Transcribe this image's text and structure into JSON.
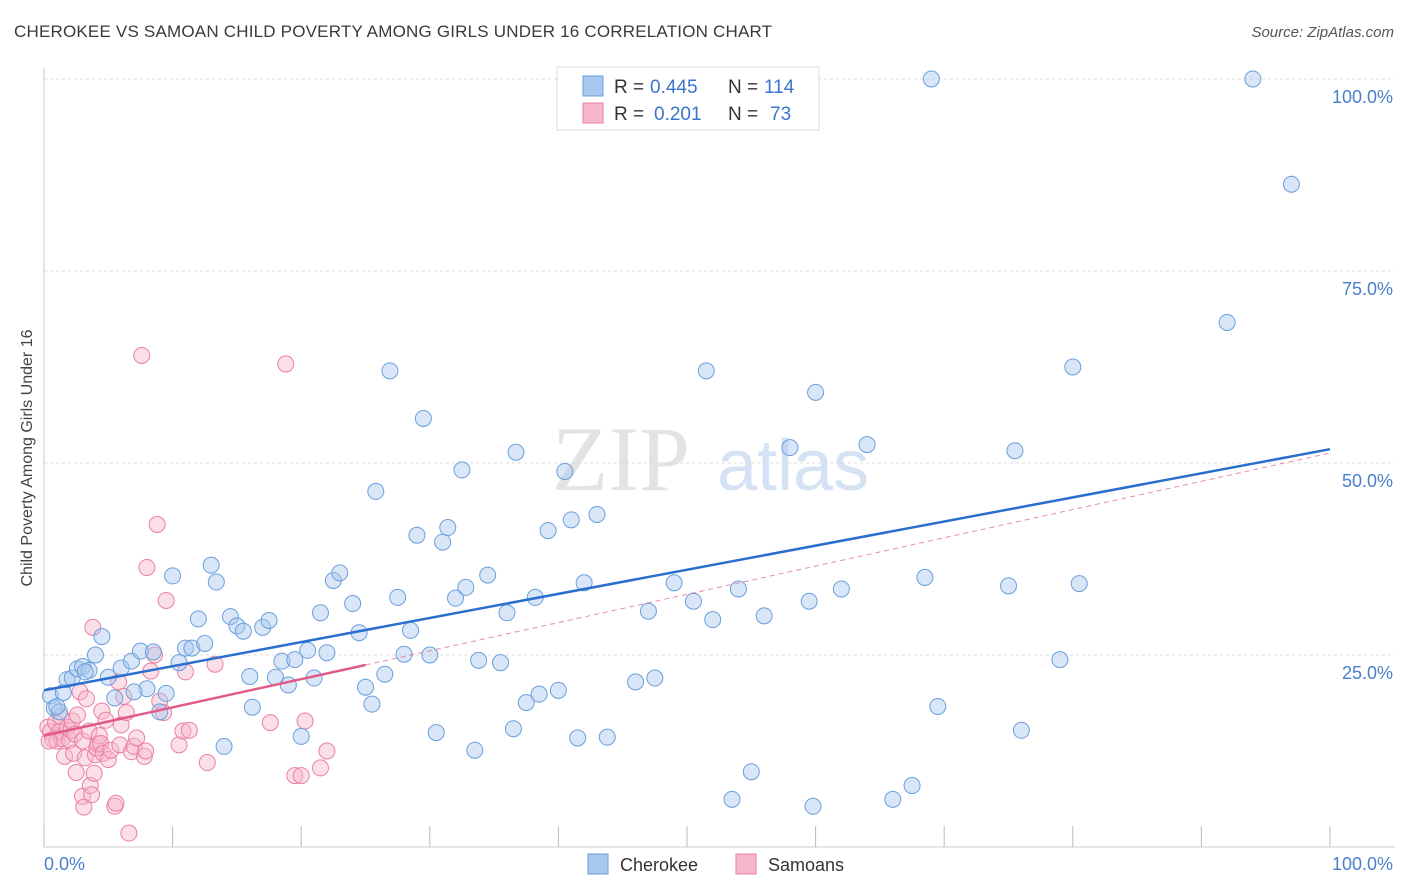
{
  "title": "CHEROKEE VS SAMOAN CHILD POVERTY AMONG GIRLS UNDER 16 CORRELATION CHART",
  "source": "Source: ZipAtlas.com",
  "watermark": {
    "zip": "ZIP",
    "atlas": "atlas"
  },
  "legend": {
    "r_label": "R =",
    "n_label": "N =",
    "cherokee": {
      "r": "0.445",
      "n": "114"
    },
    "samoans": {
      "r": "0.201",
      "n": "73"
    }
  },
  "colors": {
    "cherokee_fill": "#a9c8ef",
    "cherokee_stroke": "#6a9fdc",
    "cherokee_line": "#2a6fcf",
    "samoans_fill": "#f7b8cc",
    "samoans_stroke": "#ea7fa2",
    "samoans_line": "#e05a8a",
    "tick_color": "#4a7fcf",
    "grid": "#dddddd"
  },
  "chart_data": {
    "type": "scatter",
    "title": "CHEROKEE VS SAMOAN CHILD POVERTY AMONG GIRLS UNDER 16 CORRELATION CHART",
    "xlabel": "",
    "ylabel": "Child Poverty Among Girls Under 16",
    "xlim": [
      0,
      100
    ],
    "ylim": [
      0,
      100
    ],
    "x_tick_labels": [
      "0.0%",
      "100.0%"
    ],
    "y_tick_labels": [
      {
        "value": 25,
        "label": "25.0%"
      },
      {
        "value": 50,
        "label": "50.0%"
      },
      {
        "value": 75,
        "label": "75.0%"
      },
      {
        "value": 100,
        "label": "100.0%"
      }
    ],
    "grid": true,
    "legend_position": "top-center",
    "series": [
      {
        "name": "Cherokee",
        "r": 0.445,
        "n": 114,
        "trend": {
          "x": [
            0,
            100
          ],
          "y": [
            20.4,
            51.8
          ],
          "style": "solid"
        },
        "points": [
          [
            0.5,
            19.7
          ],
          [
            0.8,
            18.1
          ],
          [
            1.2,
            17.6
          ],
          [
            1.5,
            20.1
          ],
          [
            1.8,
            21.8
          ],
          [
            2.2,
            22.0
          ],
          [
            2.6,
            23.2
          ],
          [
            3.0,
            23.5
          ],
          [
            3.5,
            23.0
          ],
          [
            4.0,
            25.0
          ],
          [
            4.5,
            27.4
          ],
          [
            5.0,
            22.1
          ],
          [
            5.5,
            19.4
          ],
          [
            6.0,
            23.3
          ],
          [
            6.8,
            24.2
          ],
          [
            7.5,
            25.5
          ],
          [
            8.0,
            20.6
          ],
          [
            8.5,
            25.4
          ],
          [
            9.0,
            17.6
          ],
          [
            9.5,
            20.0
          ],
          [
            10.0,
            35.3
          ],
          [
            10.5,
            24.0
          ],
          [
            11.0,
            25.9
          ],
          [
            11.5,
            25.9
          ],
          [
            12.0,
            29.7
          ],
          [
            12.5,
            26.5
          ],
          [
            13.0,
            36.7
          ],
          [
            13.4,
            34.5
          ],
          [
            14.0,
            13.1
          ],
          [
            14.5,
            30.0
          ],
          [
            15.0,
            28.8
          ],
          [
            15.5,
            28.1
          ],
          [
            16.0,
            22.2
          ],
          [
            16.2,
            18.2
          ],
          [
            17.0,
            28.6
          ],
          [
            17.5,
            29.5
          ],
          [
            18.0,
            22.1
          ],
          [
            18.5,
            24.2
          ],
          [
            19.0,
            21.1
          ],
          [
            19.5,
            24.4
          ],
          [
            20.0,
            14.4
          ],
          [
            20.5,
            25.6
          ],
          [
            21.0,
            22.0
          ],
          [
            21.5,
            30.5
          ],
          [
            22.0,
            25.3
          ],
          [
            22.5,
            34.7
          ],
          [
            23.0,
            35.7
          ],
          [
            24.0,
            31.7
          ],
          [
            24.5,
            27.9
          ],
          [
            25.0,
            20.8
          ],
          [
            25.5,
            18.6
          ],
          [
            25.8,
            46.3
          ],
          [
            26.5,
            22.5
          ],
          [
            26.9,
            62.0
          ],
          [
            27.5,
            32.5
          ],
          [
            28.0,
            25.1
          ],
          [
            28.5,
            28.2
          ],
          [
            29.0,
            40.6
          ],
          [
            29.5,
            55.8
          ],
          [
            30.0,
            25.0
          ],
          [
            30.5,
            14.9
          ],
          [
            31.0,
            39.7
          ],
          [
            31.4,
            41.6
          ],
          [
            32.0,
            32.4
          ],
          [
            32.5,
            49.1
          ],
          [
            32.8,
            33.8
          ],
          [
            33.5,
            12.6
          ],
          [
            33.8,
            24.3
          ],
          [
            34.5,
            35.4
          ],
          [
            35.5,
            24.0
          ],
          [
            36.0,
            30.5
          ],
          [
            36.5,
            15.4
          ],
          [
            36.7,
            51.4
          ],
          [
            37.5,
            18.8
          ],
          [
            38.2,
            32.5
          ],
          [
            38.5,
            19.9
          ],
          [
            39.2,
            41.2
          ],
          [
            40.0,
            20.4
          ],
          [
            40.5,
            48.9
          ],
          [
            41.0,
            42.6
          ],
          [
            41.5,
            14.2
          ],
          [
            42.0,
            34.4
          ],
          [
            43.0,
            43.3
          ],
          [
            43.8,
            14.3
          ],
          [
            46.0,
            21.5
          ],
          [
            47.0,
            30.7
          ],
          [
            47.5,
            22.0
          ],
          [
            49.0,
            34.4
          ],
          [
            50.5,
            32.0
          ],
          [
            51.5,
            62.0
          ],
          [
            52.0,
            29.6
          ],
          [
            53.5,
            6.2
          ],
          [
            54.0,
            33.6
          ],
          [
            55.0,
            9.8
          ],
          [
            56.0,
            30.1
          ],
          [
            58.0,
            52.0
          ],
          [
            59.5,
            32.0
          ],
          [
            59.8,
            5.3
          ],
          [
            60.0,
            59.2
          ],
          [
            62.0,
            33.6
          ],
          [
            64.0,
            52.4
          ],
          [
            66.0,
            6.2
          ],
          [
            67.5,
            8.0
          ],
          [
            68.5,
            35.1
          ],
          [
            69.0,
            100.0
          ],
          [
            69.5,
            18.3
          ],
          [
            75.0,
            34.0
          ],
          [
            75.5,
            51.6
          ],
          [
            76.0,
            15.2
          ],
          [
            79.0,
            24.4
          ],
          [
            80.0,
            62.5
          ],
          [
            80.5,
            34.3
          ],
          [
            92.0,
            68.3
          ],
          [
            94.0,
            100.0
          ],
          [
            97.0,
            86.3
          ],
          [
            1.0,
            18.3
          ],
          [
            7.0,
            20.2
          ],
          [
            3.2,
            22.8
          ]
        ]
      },
      {
        "name": "Samoans",
        "r": 0.201,
        "n": 73,
        "trend": {
          "x": [
            0,
            25
          ],
          "y": [
            14.5,
            23.7
          ],
          "style": "solid"
        },
        "trend_extended": {
          "x": [
            25,
            100
          ],
          "y": [
            23.7,
            51.3
          ],
          "style": "dashed"
        },
        "points": [
          [
            0.3,
            15.6
          ],
          [
            0.5,
            15.0
          ],
          [
            0.7,
            14.0
          ],
          [
            0.9,
            16.2
          ],
          [
            1.0,
            13.8
          ],
          [
            1.2,
            15.0
          ],
          [
            1.3,
            17.0
          ],
          [
            1.4,
            14.1
          ],
          [
            1.6,
            11.8
          ],
          [
            1.8,
            15.6
          ],
          [
            2.0,
            13.9
          ],
          [
            2.1,
            15.2
          ],
          [
            2.2,
            16.4
          ],
          [
            2.3,
            12.2
          ],
          [
            2.4,
            14.7
          ],
          [
            2.5,
            9.7
          ],
          [
            2.6,
            17.2
          ],
          [
            2.8,
            20.2
          ],
          [
            3.0,
            13.8
          ],
          [
            3.0,
            6.6
          ],
          [
            3.1,
            5.2
          ],
          [
            3.2,
            11.6
          ],
          [
            3.3,
            19.3
          ],
          [
            3.5,
            15.1
          ],
          [
            3.6,
            8.0
          ],
          [
            3.7,
            6.8
          ],
          [
            3.8,
            28.6
          ],
          [
            3.9,
            9.6
          ],
          [
            4.0,
            12.0
          ],
          [
            4.1,
            12.9
          ],
          [
            4.2,
            13.4
          ],
          [
            4.3,
            14.5
          ],
          [
            4.4,
            13.5
          ],
          [
            4.5,
            17.7
          ],
          [
            4.6,
            12.2
          ],
          [
            4.8,
            16.5
          ],
          [
            5.0,
            11.4
          ],
          [
            5.2,
            12.6
          ],
          [
            5.5,
            5.3
          ],
          [
            5.6,
            5.7
          ],
          [
            5.8,
            21.5
          ],
          [
            5.9,
            13.3
          ],
          [
            6.0,
            15.9
          ],
          [
            6.2,
            19.6
          ],
          [
            6.4,
            17.5
          ],
          [
            6.6,
            1.8
          ],
          [
            6.8,
            12.4
          ],
          [
            7.0,
            13.1
          ],
          [
            7.2,
            14.2
          ],
          [
            7.6,
            64.0
          ],
          [
            7.8,
            11.8
          ],
          [
            7.9,
            12.5
          ],
          [
            8.0,
            36.4
          ],
          [
            8.3,
            22.9
          ],
          [
            8.6,
            25.0
          ],
          [
            8.8,
            42.0
          ],
          [
            9.0,
            19.0
          ],
          [
            9.3,
            17.5
          ],
          [
            9.5,
            32.1
          ],
          [
            10.5,
            13.3
          ],
          [
            10.8,
            15.1
          ],
          [
            11.0,
            22.8
          ],
          [
            11.3,
            15.2
          ],
          [
            12.7,
            11.0
          ],
          [
            13.3,
            23.8
          ],
          [
            17.6,
            16.2
          ],
          [
            18.8,
            62.9
          ],
          [
            19.5,
            9.3
          ],
          [
            20.0,
            9.3
          ],
          [
            20.3,
            16.4
          ],
          [
            21.5,
            10.3
          ],
          [
            22.0,
            12.5
          ],
          [
            0.4,
            13.8
          ]
        ]
      }
    ]
  }
}
